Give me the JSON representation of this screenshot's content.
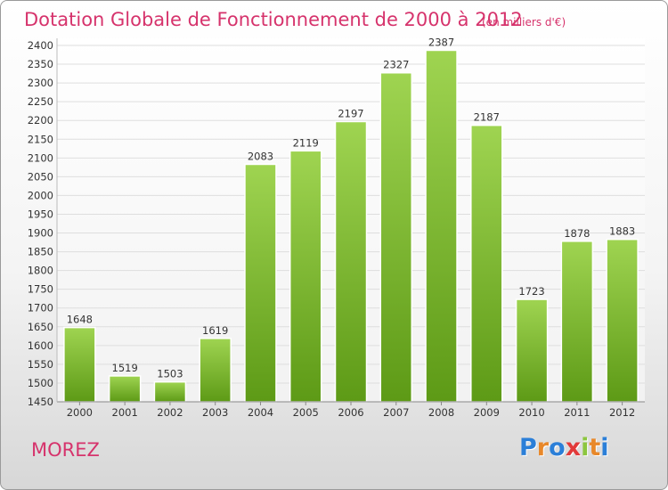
{
  "chart_data": {
    "type": "bar",
    "title": "Dotation Globale de Fonctionnement de 2000 à 2012",
    "subtitle": "(en milliers d'€)",
    "categories": [
      "2000",
      "2001",
      "2002",
      "2003",
      "2004",
      "2005",
      "2006",
      "2007",
      "2008",
      "2009",
      "2010",
      "2011",
      "2012"
    ],
    "values": [
      1648,
      1519,
      1503,
      1619,
      2083,
      2119,
      2197,
      2327,
      2387,
      2187,
      1723,
      1878,
      1883
    ],
    "ylim": [
      1450,
      2400
    ],
    "ytick_step": 50,
    "grid": true,
    "bar_color": "#7cbb2c"
  },
  "footer": {
    "town": "MOREZ",
    "logo": [
      "P",
      "r",
      "o",
      "x",
      "i",
      "t",
      "i"
    ],
    "logo_colors": [
      "#2b7fd8",
      "#e8882a",
      "#2b7fd8",
      "#e23a3a",
      "#8cc63f",
      "#e8882a",
      "#2b7fd8"
    ]
  }
}
